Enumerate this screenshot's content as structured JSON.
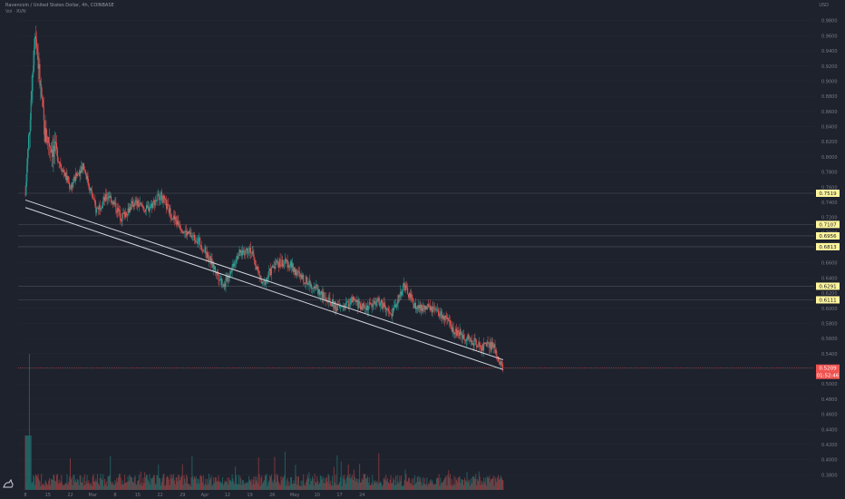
{
  "header": {
    "symbol_line": "Ravencoin / United States Dollar, 4h, COINBASE",
    "indicator_line": "Vol · RVN",
    "currency": "USD"
  },
  "colors": {
    "background": "#1e222d",
    "up": "#26a69a",
    "down": "#ef5350",
    "trendline": "#d1d4dc",
    "level_line": "#4c525e",
    "label_bg": "#fff59d",
    "current_bg": "#ef5350"
  },
  "chart_data": {
    "type": "candlestick",
    "title": "",
    "xlabel": "",
    "ylabel": "",
    "ylim": [
      0.36,
      1.0
    ],
    "y_ticks": [
      0.98,
      0.96,
      0.94,
      0.92,
      0.9,
      0.88,
      0.86,
      0.84,
      0.82,
      0.8,
      0.78,
      0.76,
      0.74,
      0.72,
      0.7,
      0.68,
      0.66,
      0.64,
      0.62,
      0.6,
      0.58,
      0.56,
      0.54,
      0.52,
      0.5,
      0.48,
      0.46,
      0.44,
      0.42,
      0.4,
      0.38
    ],
    "x_ticks": [
      "8",
      "15",
      "22",
      "Mar",
      "8",
      "15",
      "22",
      "29",
      "Apr",
      "12",
      "19",
      "26",
      "May",
      "10",
      "17",
      "24"
    ],
    "level_lines": [
      {
        "label": "0.7519",
        "value": 0.7519
      },
      {
        "label": "0.7107",
        "value": 0.7107
      },
      {
        "label": "0.6956",
        "value": 0.6956
      },
      {
        "label": "0.6813",
        "value": 0.6813
      },
      {
        "label": "0.6291",
        "value": 0.6291
      },
      {
        "label": "0.6111",
        "value": 0.6111
      }
    ],
    "current_price": {
      "label": "0.5209",
      "value": 0.5209,
      "countdown": "01:52:46"
    },
    "trend_path": [
      [
        0,
        0.75
      ],
      [
        3,
        0.97
      ],
      [
        6,
        0.83
      ],
      [
        10,
        0.8
      ],
      [
        14,
        0.76
      ],
      [
        18,
        0.79
      ],
      [
        22,
        0.73
      ],
      [
        26,
        0.75
      ],
      [
        30,
        0.72
      ],
      [
        34,
        0.74
      ],
      [
        38,
        0.73
      ],
      [
        42,
        0.75
      ],
      [
        46,
        0.72
      ],
      [
        50,
        0.7
      ],
      [
        54,
        0.69
      ],
      [
        58,
        0.66
      ],
      [
        62,
        0.63
      ],
      [
        66,
        0.67
      ],
      [
        70,
        0.68
      ],
      [
        74,
        0.63
      ],
      [
        78,
        0.66
      ],
      [
        82,
        0.66
      ],
      [
        86,
        0.64
      ],
      [
        90,
        0.63
      ],
      [
        94,
        0.61
      ],
      [
        98,
        0.6
      ],
      [
        102,
        0.61
      ],
      [
        106,
        0.6
      ],
      [
        110,
        0.61
      ],
      [
        114,
        0.59
      ],
      [
        118,
        0.63
      ],
      [
        122,
        0.6
      ],
      [
        126,
        0.6
      ],
      [
        130,
        0.59
      ],
      [
        134,
        0.57
      ],
      [
        138,
        0.56
      ],
      [
        142,
        0.55
      ],
      [
        146,
        0.55
      ],
      [
        149,
        0.52
      ]
    ],
    "trendline_pairs": [
      {
        "from": [
          0,
          0.743
        ],
        "to": [
          149,
          0.532
        ]
      },
      {
        "from": [
          0,
          0.733
        ],
        "to": [
          149,
          0.519
        ]
      }
    ],
    "x_axis_days": [
      0,
      7,
      14,
      21,
      28,
      35,
      42,
      49,
      56,
      63,
      70,
      77,
      84,
      91,
      98,
      105
    ]
  }
}
